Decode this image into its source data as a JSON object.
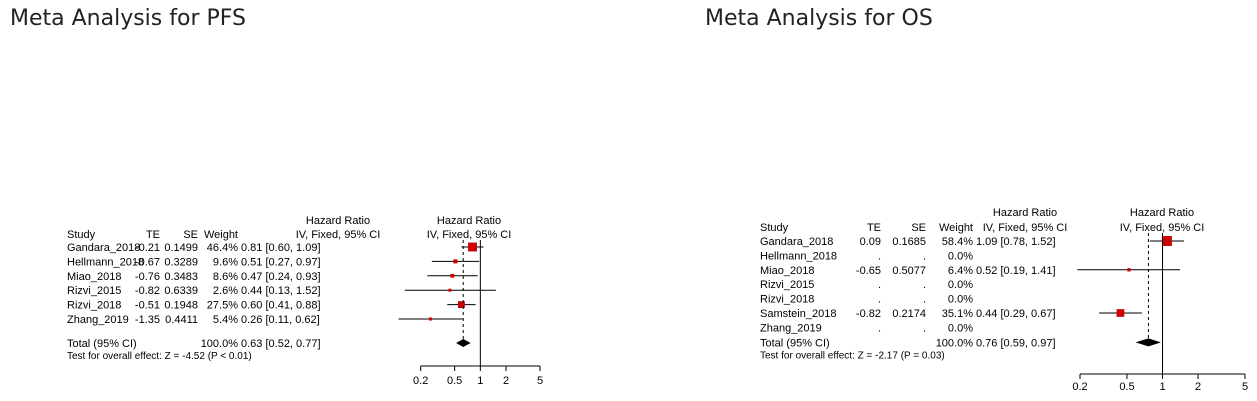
{
  "chart_data": [
    {
      "type": "forest",
      "title": "Meta Analysis for PFS",
      "headers": {
        "study": "Study",
        "te": "TE",
        "se": "SE",
        "weight": "Weight",
        "ci_line1": "Hazard Ratio",
        "ci_line2": "IV, Fixed, 95% CI",
        "plot_line1": "Hazard Ratio",
        "plot_line2": "IV, Fixed, 95% CI"
      },
      "studies": [
        {
          "study": "Gandara_2018",
          "te": "-0.21",
          "se": "0.1499",
          "weight": "46.4%",
          "ci": "0.81 [0.60, 1.09]",
          "hr": 0.81,
          "lower": 0.6,
          "upper": 1.09,
          "w": 46.4
        },
        {
          "study": "Hellmann_2018",
          "te": "-0.67",
          "se": "0.3289",
          "weight": "9.6%",
          "ci": "0.51 [0.27, 0.97]",
          "hr": 0.51,
          "lower": 0.27,
          "upper": 0.97,
          "w": 9.6
        },
        {
          "study": "Miao_2018",
          "te": "-0.76",
          "se": "0.3483",
          "weight": "8.6%",
          "ci": "0.47 [0.24, 0.93]",
          "hr": 0.47,
          "lower": 0.24,
          "upper": 0.93,
          "w": 8.6
        },
        {
          "study": "Rizvi_2015",
          "te": "-0.82",
          "se": "0.6339",
          "weight": "2.6%",
          "ci": "0.44 [0.13, 1.52]",
          "hr": 0.44,
          "lower": 0.13,
          "upper": 1.52,
          "w": 2.6
        },
        {
          "study": "Rizvi_2018",
          "te": "-0.51",
          "se": "0.1948",
          "weight": "27.5%",
          "ci": "0.60 [0.41, 0.88]",
          "hr": 0.6,
          "lower": 0.41,
          "upper": 0.88,
          "w": 27.5
        },
        {
          "study": "Zhang_2019",
          "te": "-1.35",
          "se": "0.4411",
          "weight": "5.4%",
          "ci": "0.26 [0.11, 0.62]",
          "hr": 0.26,
          "lower": 0.11,
          "upper": 0.62,
          "w": 5.4
        }
      ],
      "total": {
        "label": "Total (95% CI)",
        "weight": "100.0%",
        "ci": "0.63 [0.52, 0.77]",
        "hr": 0.63,
        "lower": 0.52,
        "upper": 0.77
      },
      "test": "Test for overall effect: Z = -4.52 (P < 0.01)",
      "x_scale": "log",
      "xlim": [
        0.1,
        5
      ],
      "xticks": [
        "0.2",
        "0.5",
        "1",
        "2",
        "5"
      ],
      "marker_color": "#cc0000"
    },
    {
      "type": "forest",
      "title": "Meta Analysis for OS",
      "headers": {
        "study": "Study",
        "te": "TE",
        "se": "SE",
        "weight": "Weight",
        "ci_line1": "Hazard Ratio",
        "ci_line2": "IV, Fixed, 95% CI",
        "plot_line1": "Hazard Ratio",
        "plot_line2": "IV, Fixed, 95% CI"
      },
      "studies": [
        {
          "study": "Gandara_2018",
          "te": "0.09",
          "se": "0.1685",
          "weight": "58.4%",
          "ci": "1.09 [0.78, 1.52]",
          "hr": 1.09,
          "lower": 0.78,
          "upper": 1.52,
          "w": 58.4
        },
        {
          "study": "Hellmann_2018",
          "te": ".",
          "se": ".",
          "weight": "0.0%",
          "ci": "",
          "hr": null,
          "lower": null,
          "upper": null,
          "w": 0
        },
        {
          "study": "Miao_2018",
          "te": "-0.65",
          "se": "0.5077",
          "weight": "6.4%",
          "ci": "0.52 [0.19, 1.41]",
          "hr": 0.52,
          "lower": 0.19,
          "upper": 1.41,
          "w": 6.4
        },
        {
          "study": "Rizvi_2015",
          "te": ".",
          "se": ".",
          "weight": "0.0%",
          "ci": "",
          "hr": null,
          "lower": null,
          "upper": null,
          "w": 0
        },
        {
          "study": "Rizvi_2018",
          "te": ".",
          "se": ".",
          "weight": "0.0%",
          "ci": "",
          "hr": null,
          "lower": null,
          "upper": null,
          "w": 0
        },
        {
          "study": "Samstein_2018",
          "te": "-0.82",
          "se": "0.2174",
          "weight": "35.1%",
          "ci": "0.44 [0.29, 0.67]",
          "hr": 0.44,
          "lower": 0.29,
          "upper": 0.67,
          "w": 35.1
        },
        {
          "study": "Zhang_2019",
          "te": ".",
          "se": ".",
          "weight": "0.0%",
          "ci": "",
          "hr": null,
          "lower": null,
          "upper": null,
          "w": 0
        }
      ],
      "total": {
        "label": "Total (95% CI)",
        "weight": "100.0%",
        "ci": "0.76 [0.59, 0.97]",
        "hr": 0.76,
        "lower": 0.59,
        "upper": 0.97
      },
      "test": "Test for overall effect: Z = -2.17 (P = 0.03)",
      "x_scale": "log",
      "xlim": [
        0.2,
        5
      ],
      "xticks": [
        "0.2",
        "0.5",
        "1",
        "2",
        "5"
      ],
      "marker_color": "#cc0000"
    }
  ]
}
